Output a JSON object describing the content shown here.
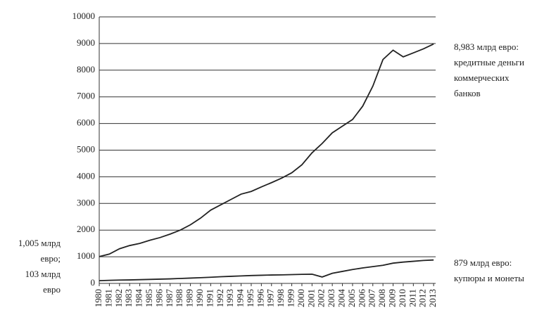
{
  "chart_data": {
    "type": "line",
    "x": [
      1980,
      1981,
      1982,
      1983,
      1984,
      1985,
      1986,
      1987,
      1988,
      1989,
      1990,
      1991,
      1992,
      1993,
      1994,
      1995,
      1996,
      1997,
      1998,
      1999,
      2000,
      2001,
      2002,
      2003,
      2004,
      2005,
      2006,
      2007,
      2008,
      2009,
      2010,
      2011,
      2012,
      2013
    ],
    "series": [
      {
        "color": "#222222",
        "values": [
          1005,
          1100,
          1300,
          1420,
          1500,
          1620,
          1720,
          1850,
          2000,
          2200,
          2450,
          2750,
          2950,
          3150,
          3350,
          3450,
          3620,
          3780,
          3950,
          4150,
          4450,
          4900,
          5250,
          5650,
          5900,
          6150,
          6650,
          7400,
          8400,
          8750,
          8500,
          8650,
          8800,
          8983
        ]
      },
      {
        "color": "#222222",
        "values": [
          103,
          115,
          125,
          130,
          140,
          150,
          160,
          170,
          185,
          200,
          215,
          230,
          250,
          265,
          280,
          295,
          305,
          315,
          320,
          330,
          340,
          345,
          240,
          380,
          450,
          520,
          580,
          630,
          680,
          760,
          800,
          830,
          860,
          879
        ]
      }
    ],
    "xlim": [
      1980,
      2013.2
    ],
    "xticks": [
      1980,
      1981,
      1982,
      1983,
      1984,
      1985,
      1986,
      1987,
      1988,
      1989,
      1990,
      1991,
      1992,
      1993,
      1994,
      1995,
      1996,
      1997,
      1998,
      1999,
      2000,
      2001,
      2002,
      2003,
      2004,
      2005,
      2006,
      2007,
      2008,
      2009,
      2010,
      2011,
      2012,
      2013
    ],
    "ylim": [
      0,
      10000
    ],
    "yticks": [
      0,
      1000,
      2000,
      3000,
      4000,
      5000,
      6000,
      7000,
      8000,
      9000,
      10000
    ],
    "grid": true,
    "annotations": {
      "credit": [
        "8,983 млрд евро:",
        "кредитные деньги",
        "коммерческих",
        "банков"
      ],
      "start": [
        "1,005 млрд",
        "евро;",
        "103 млрд",
        "евро"
      ],
      "cash": [
        "879 млрд евро:",
        "купюры и монеты"
      ]
    }
  }
}
